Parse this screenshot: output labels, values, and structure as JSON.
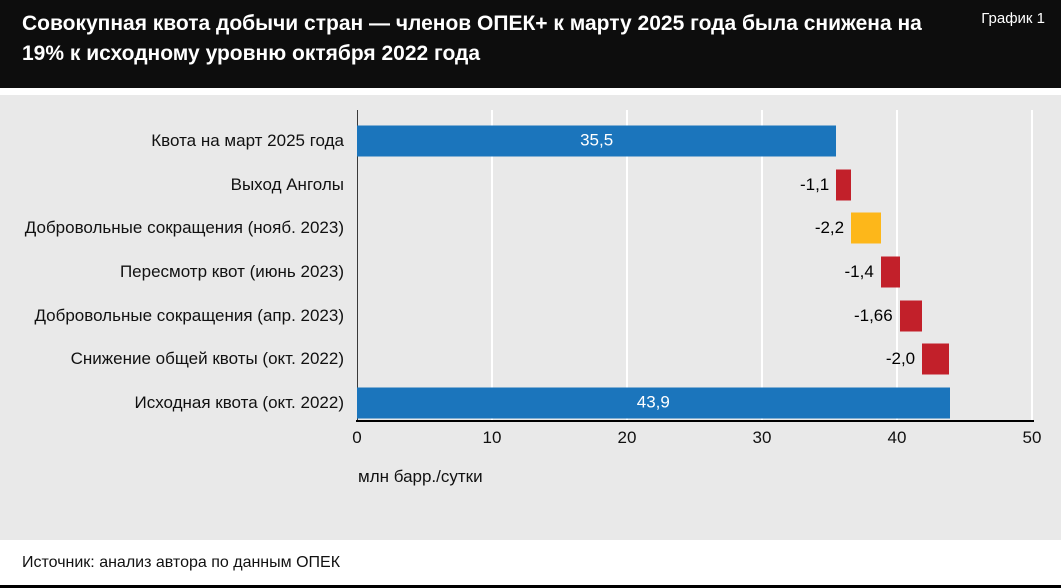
{
  "header": {
    "title": "Совокупная квота добычи стран — членов ОПЕК+ к марту 2025 года была снижена на 19% к исходному уровню октября 2022 года",
    "badge": "График 1"
  },
  "chart_data": {
    "type": "bar",
    "subtype": "horizontal-waterfall",
    "title": "Совокупная квота добычи стран — членов ОПЕК+ к марту 2025 года была снижена на 19% к исходному уровню октября 2022 года",
    "xlabel": "млн барр./сутки",
    "xlim": [
      0,
      50
    ],
    "ticks": [
      0,
      10,
      20,
      30,
      40,
      50
    ],
    "grid": "vertical white gridlines on gray plot background",
    "legend": "none",
    "colors": {
      "total_blue": "#1b75bc",
      "decrease_red": "#c2202a",
      "voluntary_yellow": "#fdb71a",
      "plot_background": "#e9e9e9",
      "gridline": "#ffffff"
    },
    "rows": [
      {
        "label": "Квота на март 2025 года",
        "value": 35.5,
        "display": "35,5",
        "start": 0,
        "color": "#1b75bc",
        "label_position": "inside"
      },
      {
        "label": "Выход Анголы",
        "value": -1.1,
        "display": "-1,1",
        "start": 35.5,
        "color": "#c2202a",
        "label_position": "left"
      },
      {
        "label": "Добровольные сокращения (нояб. 2023)",
        "value": -2.2,
        "display": "-2,2",
        "start": 36.6,
        "color": "#fdb71a",
        "label_position": "left"
      },
      {
        "label": "Пересмотр квот (июнь 2023)",
        "value": -1.4,
        "display": "-1,4",
        "start": 38.8,
        "color": "#c2202a",
        "label_position": "left"
      },
      {
        "label": "Добровольные сокращения (апр. 2023)",
        "value": -1.66,
        "display": "-1,66",
        "start": 40.2,
        "color": "#c2202a",
        "label_position": "left"
      },
      {
        "label": "Снижение общей квоты (окт. 2022)",
        "value": -2.0,
        "display": "-2,0",
        "start": 41.86,
        "color": "#c2202a",
        "label_position": "left"
      },
      {
        "label": "Исходная квота (окт. 2022)",
        "value": 43.9,
        "display": "43,9",
        "start": 0,
        "color": "#1b75bc",
        "label_position": "inside"
      }
    ]
  },
  "footer": {
    "source": "Источник: анализ автора по данным ОПЕК"
  }
}
